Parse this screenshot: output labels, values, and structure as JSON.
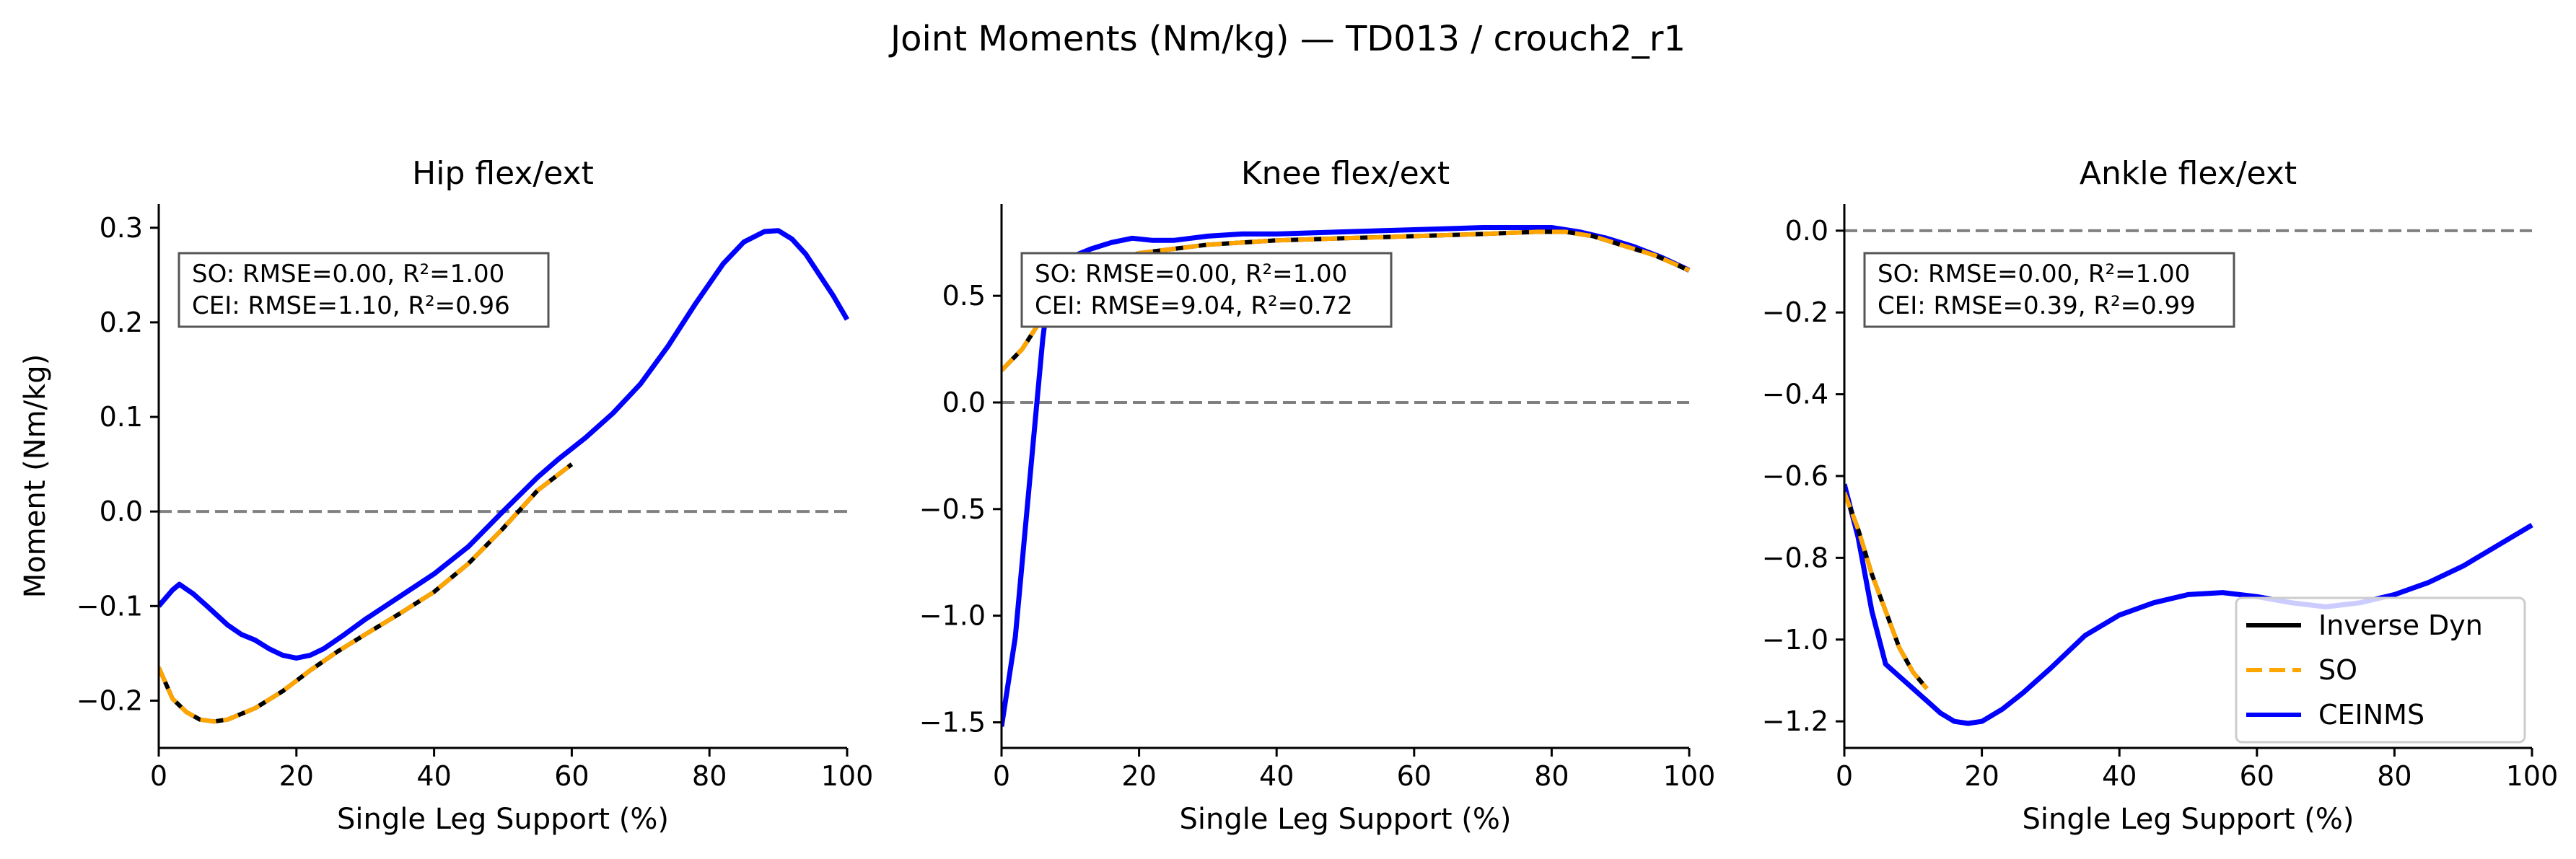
{
  "figure": {
    "title": "Joint Moments (Nm/kg) — TD013 / crouch2_r1"
  },
  "colors": {
    "inverse_dyn": "#000000",
    "so": "#FFA500",
    "ceinms": "#0000FF",
    "zero_line": "#808080",
    "axis": "#000000",
    "annotation_border": "#555555"
  },
  "chart_data": [
    {
      "type": "line",
      "title": "Hip flex/ext",
      "xlabel": "Single Leg Support (%)",
      "ylabel": "Moment (Nm/kg)",
      "xlim": [
        0,
        100
      ],
      "ylim": [
        -0.25,
        0.325
      ],
      "xticks": [
        0,
        20,
        40,
        60,
        80,
        100
      ],
      "yticks": [
        -0.2,
        -0.1,
        0.0,
        0.1,
        0.2,
        0.3
      ],
      "ytick_labels": [
        "−0.2",
        "−0.1",
        "0.0",
        "0.1",
        "0.2",
        "0.3"
      ],
      "zero_line": true,
      "grid": false,
      "annotation": [
        "SO:  RMSE=0.00, R²=1.00",
        "CEI: RMSE=1.10, R²=0.96"
      ],
      "series": [
        {
          "name": "Inverse Dyn",
          "style": "solid",
          "x": [
            0,
            2,
            4,
            6,
            8,
            10,
            14,
            18,
            22,
            26,
            30,
            35,
            40,
            45,
            50,
            55,
            60
          ],
          "y": [
            -0.165,
            -0.198,
            -0.212,
            -0.22,
            -0.222,
            -0.22,
            -0.208,
            -0.19,
            -0.168,
            -0.148,
            -0.13,
            -0.108,
            -0.085,
            -0.055,
            -0.018,
            0.022,
            0.05
          ]
        },
        {
          "name": "SO",
          "style": "dashed",
          "x": [
            0,
            2,
            4,
            6,
            8,
            10,
            14,
            18,
            22,
            26,
            30,
            35,
            40,
            45,
            50,
            55,
            60
          ],
          "y": [
            -0.165,
            -0.198,
            -0.212,
            -0.22,
            -0.222,
            -0.22,
            -0.208,
            -0.19,
            -0.168,
            -0.148,
            -0.13,
            -0.108,
            -0.085,
            -0.055,
            -0.018,
            0.022,
            0.05
          ]
        },
        {
          "name": "CEINMS",
          "style": "solid",
          "x": [
            0,
            2,
            3,
            5,
            7,
            10,
            12,
            14,
            16,
            18,
            20,
            22,
            24,
            27,
            30,
            35,
            40,
            45,
            50,
            55,
            58,
            62,
            66,
            70,
            74,
            78,
            82,
            85,
            88,
            90,
            92,
            94,
            96,
            98,
            100
          ],
          "y": [
            -0.1,
            -0.083,
            -0.077,
            -0.087,
            -0.1,
            -0.12,
            -0.13,
            -0.136,
            -0.145,
            -0.152,
            -0.155,
            -0.152,
            -0.145,
            -0.13,
            -0.114,
            -0.09,
            -0.066,
            -0.037,
            0.0,
            0.036,
            0.055,
            0.078,
            0.104,
            0.135,
            0.175,
            0.22,
            0.262,
            0.285,
            0.296,
            0.297,
            0.288,
            0.272,
            0.25,
            0.228,
            0.203
          ]
        }
      ]
    },
    {
      "type": "line",
      "title": "Knee flex/ext",
      "xlabel": "Single Leg Support (%)",
      "ylabel": "",
      "xlim": [
        0,
        100
      ],
      "ylim": [
        -1.62,
        0.93
      ],
      "xticks": [
        0,
        20,
        40,
        60,
        80,
        100
      ],
      "yticks": [
        -1.5,
        -1.0,
        -0.5,
        0.0,
        0.5
      ],
      "ytick_labels": [
        "−1.5",
        "−1.0",
        "−0.5",
        "0.0",
        "0.5"
      ],
      "zero_line": true,
      "grid": false,
      "annotation": [
        "SO:  RMSE=0.00, R²=1.00",
        "CEI: RMSE=9.04, R²=0.72"
      ],
      "series": [
        {
          "name": "Inverse Dyn",
          "style": "solid",
          "x": [
            0,
            3,
            6,
            9,
            12,
            16,
            20,
            25,
            30,
            40,
            50,
            60,
            70,
            78,
            82,
            86,
            90,
            95,
            100
          ],
          "y": [
            0.15,
            0.25,
            0.4,
            0.52,
            0.6,
            0.66,
            0.7,
            0.72,
            0.74,
            0.76,
            0.77,
            0.78,
            0.79,
            0.8,
            0.8,
            0.78,
            0.74,
            0.69,
            0.62
          ]
        },
        {
          "name": "SO",
          "style": "dashed",
          "x": [
            0,
            3,
            6,
            9,
            12,
            16,
            20,
            25,
            30,
            40,
            50,
            60,
            70,
            78,
            82,
            86,
            90,
            95,
            100
          ],
          "y": [
            0.15,
            0.25,
            0.4,
            0.52,
            0.6,
            0.66,
            0.7,
            0.72,
            0.74,
            0.76,
            0.77,
            0.78,
            0.79,
            0.8,
            0.8,
            0.78,
            0.74,
            0.69,
            0.62
          ]
        },
        {
          "name": "CEINMS",
          "style": "solid",
          "x": [
            0,
            2,
            4,
            6,
            7,
            8,
            10,
            13,
            16,
            19,
            22,
            25,
            30,
            35,
            40,
            50,
            60,
            70,
            76,
            80,
            84,
            88,
            92,
            96,
            100
          ],
          "y": [
            -1.52,
            -1.1,
            -0.4,
            0.3,
            0.55,
            0.64,
            0.68,
            0.72,
            0.75,
            0.77,
            0.76,
            0.76,
            0.78,
            0.79,
            0.79,
            0.8,
            0.81,
            0.82,
            0.82,
            0.82,
            0.8,
            0.77,
            0.73,
            0.68,
            0.62
          ]
        }
      ]
    },
    {
      "type": "line",
      "title": "Ankle flex/ext",
      "xlabel": "Single Leg Support (%)",
      "ylabel": "",
      "xlim": [
        0,
        100
      ],
      "ylim": [
        -1.265,
        0.065
      ],
      "xticks": [
        0,
        20,
        40,
        60,
        80,
        100
      ],
      "yticks": [
        -1.2,
        -1.0,
        -0.8,
        -0.6,
        -0.4,
        -0.2,
        0.0
      ],
      "ytick_labels": [
        "−1.2",
        "−1.0",
        "−0.8",
        "−0.6",
        "−0.4",
        "−0.2",
        "0.0"
      ],
      "zero_line": true,
      "grid": false,
      "annotation": [
        "SO:  RMSE=0.00, R²=1.00",
        "CEI: RMSE=0.39, R²=0.99"
      ],
      "legend": {
        "placement": "lower right",
        "entries": [
          "Inverse Dyn",
          "SO",
          "CEINMS"
        ]
      },
      "series": [
        {
          "name": "Inverse Dyn",
          "style": "solid",
          "x": [
            0,
            2,
            4,
            6,
            8,
            10,
            12
          ],
          "y": [
            -0.64,
            -0.73,
            -0.84,
            -0.93,
            -1.02,
            -1.08,
            -1.12
          ]
        },
        {
          "name": "SO",
          "style": "dashed",
          "x": [
            0,
            2,
            4,
            6,
            8,
            10,
            12
          ],
          "y": [
            -0.64,
            -0.73,
            -0.84,
            -0.93,
            -1.02,
            -1.08,
            -1.12
          ]
        },
        {
          "name": "CEINMS",
          "style": "solid",
          "x": [
            0,
            2,
            4,
            6,
            8,
            10,
            12,
            14,
            16,
            18,
            20,
            23,
            26,
            30,
            35,
            40,
            45,
            50,
            55,
            60,
            65,
            70,
            75,
            80,
            85,
            90,
            95,
            100
          ],
          "y": [
            -0.62,
            -0.75,
            -0.93,
            -1.06,
            -1.09,
            -1.12,
            -1.15,
            -1.18,
            -1.2,
            -1.205,
            -1.2,
            -1.17,
            -1.13,
            -1.07,
            -0.99,
            -0.94,
            -0.91,
            -0.89,
            -0.885,
            -0.895,
            -0.91,
            -0.92,
            -0.91,
            -0.89,
            -0.86,
            -0.82,
            -0.77,
            -0.72
          ]
        }
      ]
    }
  ]
}
